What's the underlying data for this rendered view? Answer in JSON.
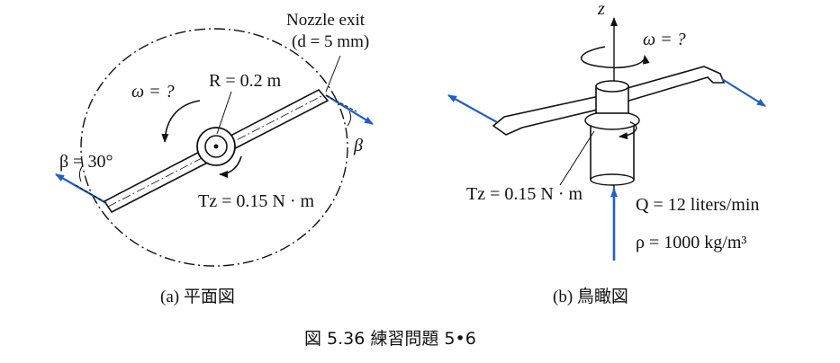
{
  "plan_view": {
    "nozzle_label_line1": "Nozzle exit",
    "nozzle_label_line2": "(d = 5 mm)",
    "omega_label": "ω = ?",
    "radius_label": "R = 0.2 m",
    "beta_left_label": "β = 30°",
    "beta_right_label": "β",
    "torque_label": "Tz = 0.15 N · m",
    "caption": "(a)  平面図"
  },
  "bird_view": {
    "axis_label": "z",
    "omega_label": "ω = ?",
    "torque_label": "Tz = 0.15 N · m",
    "flow_label": "Q = 12 liters/min",
    "density_label": "ρ = 1000 kg/m³",
    "caption": "(b)  鳥瞰図"
  },
  "figure_caption": "図 5.36   練習問題 5•6",
  "colors": {
    "line": "#111111",
    "arrow_blue": "#1f5fc8"
  }
}
